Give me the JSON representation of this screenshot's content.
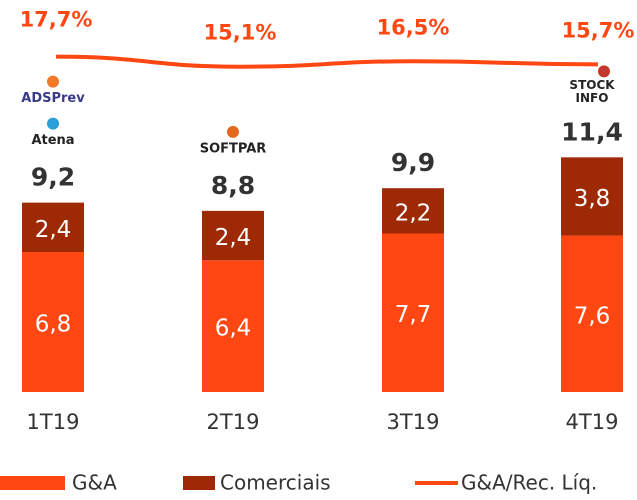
{
  "chart_data": {
    "type": "bar",
    "categories": [
      "1T19",
      "2T19",
      "3T19",
      "4T19"
    ],
    "series": [
      {
        "name": "G&A",
        "color": "#ff4713",
        "values": [
          6.8,
          6.4,
          7.7,
          7.6
        ],
        "value_labels": [
          "6,8",
          "6,4",
          "7,7",
          "7,6"
        ]
      },
      {
        "name": "Comerciais",
        "color": "#9e2a05",
        "values": [
          2.4,
          2.4,
          2.2,
          3.8
        ],
        "value_labels": [
          "2,4",
          "2,4",
          "2,2",
          "3,8"
        ]
      },
      {
        "name": "G&A/Rec. Líq.",
        "type": "line",
        "axis": "y2",
        "color": "#ff4713",
        "values": [
          17.7,
          15.1,
          16.5,
          15.7
        ],
        "value_labels": [
          "17,7%",
          "15,1%",
          "16,5%",
          "15,7%"
        ]
      }
    ],
    "totals": {
      "values": [
        9.2,
        8.8,
        9.9,
        11.4
      ],
      "value_labels": [
        "9,2",
        "8,8",
        "9,9",
        "11,4"
      ]
    },
    "ylim": [
      0,
      17.1
    ],
    "y2lim": [
      -69,
      22
    ],
    "logos": [
      {
        "category": 0,
        "texts": [
          "ADSPrev",
          "Atena"
        ]
      },
      {
        "category": 1,
        "texts": [
          "SOFTPAR"
        ]
      },
      {
        "category": 3,
        "texts": [
          "STOCK",
          "INFO"
        ]
      }
    ]
  }
}
